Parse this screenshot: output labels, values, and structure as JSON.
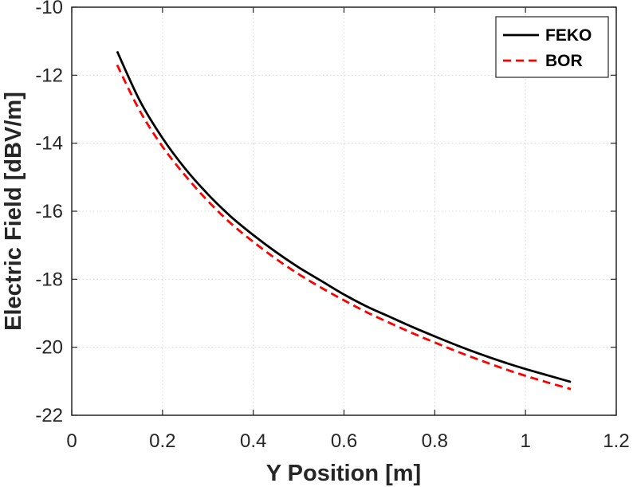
{
  "chart_data": {
    "type": "line",
    "xlabel": "Y Position [m]",
    "ylabel": "Electric Field [dBV/m]",
    "xlim": [
      0,
      1.2
    ],
    "ylim": [
      -22,
      -10
    ],
    "xticks": [
      0,
      0.2,
      0.4,
      0.6,
      0.8,
      1,
      1.2
    ],
    "xtick_labels": [
      "0",
      "0.2",
      "0.4",
      "0.6",
      "0.8",
      "1",
      "1.2"
    ],
    "yticks": [
      -22,
      -20,
      -18,
      -16,
      -14,
      -12,
      -10
    ],
    "ytick_labels": [
      "-22",
      "-20",
      "-18",
      "-16",
      "-14",
      "-12",
      "-10"
    ],
    "grid": true,
    "legend_position": "top-right",
    "x": [
      0.1,
      0.15,
      0.2,
      0.25,
      0.3,
      0.35,
      0.4,
      0.45,
      0.5,
      0.55,
      0.6,
      0.65,
      0.7,
      0.75,
      0.8,
      0.85,
      0.9,
      0.95,
      1.0,
      1.05,
      1.1
    ],
    "series": [
      {
        "name": "FEKO",
        "color": "#000000",
        "style": "solid",
        "values": [
          -11.3,
          -12.75,
          -13.85,
          -14.75,
          -15.5,
          -16.15,
          -16.7,
          -17.2,
          -17.65,
          -18.05,
          -18.45,
          -18.8,
          -19.1,
          -19.4,
          -19.68,
          -19.95,
          -20.2,
          -20.43,
          -20.64,
          -20.83,
          -21.02
        ]
      },
      {
        "name": "BOR",
        "color": "#ff0000",
        "style": "dashed",
        "values": [
          -11.7,
          -13.05,
          -14.1,
          -14.95,
          -15.7,
          -16.35,
          -16.9,
          -17.4,
          -17.85,
          -18.25,
          -18.62,
          -18.97,
          -19.28,
          -19.58,
          -19.86,
          -20.13,
          -20.38,
          -20.62,
          -20.84,
          -21.04,
          -21.23
        ]
      }
    ]
  }
}
